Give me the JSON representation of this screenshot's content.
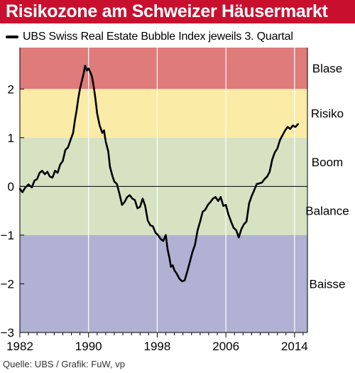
{
  "header": {
    "title": "Risikozone am Schweizer Häusermarkt"
  },
  "legend": {
    "label": "UBS Swiss Real Estate Bubble Index jeweils 3. Quartal"
  },
  "source": "Quelle: UBS / Grafik: FuW, vp",
  "colors": {
    "title_bg": "#c8102e",
    "blase": "#e07b7b",
    "risiko": "#faeba6",
    "boom_balance": "#d6e2c2",
    "baisse": "#b1b1d3",
    "line": "#000000"
  },
  "chart_data": {
    "type": "line",
    "title": "Risikozone am Schweizer Häusermarkt",
    "xlabel": "",
    "ylabel": "",
    "xlim": [
      1982,
      2015.5
    ],
    "ylim": [
      -3,
      2.85
    ],
    "x_ticks": [
      1982,
      1990,
      1998,
      2006,
      2014
    ],
    "y_ticks": [
      -3,
      -2,
      -1,
      0,
      1,
      2
    ],
    "y_tick_labels": [
      "−3",
      "−2",
      "−1",
      "0",
      "1",
      "2"
    ],
    "zones": [
      {
        "label": "Blase",
        "from": 2,
        "to": 2.85
      },
      {
        "label": "Risiko",
        "from": 1,
        "to": 2
      },
      {
        "label": "Boom",
        "from": 0,
        "to": 1
      },
      {
        "label": "Balance",
        "from": -1,
        "to": 0
      },
      {
        "label": "Baisse",
        "from": -3,
        "to": -1
      }
    ],
    "series": [
      {
        "name": "UBS Swiss Real Estate Bubble Index jeweils 3. Quartal",
        "points": [
          [
            1982.0,
            -0.05
          ],
          [
            1982.3,
            -0.12
          ],
          [
            1982.6,
            -0.03
          ],
          [
            1983.0,
            0.04
          ],
          [
            1983.4,
            -0.02
          ],
          [
            1983.7,
            0.12
          ],
          [
            1984.0,
            0.15
          ],
          [
            1984.3,
            0.28
          ],
          [
            1984.6,
            0.32
          ],
          [
            1984.9,
            0.25
          ],
          [
            1985.2,
            0.3
          ],
          [
            1985.5,
            0.2
          ],
          [
            1985.8,
            0.18
          ],
          [
            1986.1,
            0.32
          ],
          [
            1986.4,
            0.28
          ],
          [
            1986.7,
            0.45
          ],
          [
            1987.0,
            0.52
          ],
          [
            1987.3,
            0.75
          ],
          [
            1987.6,
            0.8
          ],
          [
            1987.9,
            0.95
          ],
          [
            1988.2,
            1.1
          ],
          [
            1988.4,
            1.35
          ],
          [
            1988.6,
            1.55
          ],
          [
            1988.8,
            1.8
          ],
          [
            1989.0,
            2.0
          ],
          [
            1989.2,
            2.15
          ],
          [
            1989.4,
            2.3
          ],
          [
            1989.6,
            2.48
          ],
          [
            1989.8,
            2.38
          ],
          [
            1990.0,
            2.42
          ],
          [
            1990.2,
            2.35
          ],
          [
            1990.4,
            2.25
          ],
          [
            1990.6,
            2.05
          ],
          [
            1990.8,
            1.8
          ],
          [
            1991.0,
            1.5
          ],
          [
            1991.3,
            1.25
          ],
          [
            1991.6,
            1.1
          ],
          [
            1991.8,
            1.15
          ],
          [
            1992.0,
            0.92
          ],
          [
            1992.3,
            0.72
          ],
          [
            1992.5,
            0.4
          ],
          [
            1992.8,
            0.2
          ],
          [
            1993.0,
            0.1
          ],
          [
            1993.3,
            0.05
          ],
          [
            1993.6,
            -0.15
          ],
          [
            1993.9,
            -0.38
          ],
          [
            1994.2,
            -0.32
          ],
          [
            1994.5,
            -0.22
          ],
          [
            1994.8,
            -0.18
          ],
          [
            1995.1,
            -0.25
          ],
          [
            1995.4,
            -0.28
          ],
          [
            1995.7,
            -0.45
          ],
          [
            1996.0,
            -0.42
          ],
          [
            1996.3,
            -0.25
          ],
          [
            1996.6,
            -0.4
          ],
          [
            1996.9,
            -0.7
          ],
          [
            1997.2,
            -0.8
          ],
          [
            1997.5,
            -0.82
          ],
          [
            1997.8,
            -0.95
          ],
          [
            1998.1,
            -1.0
          ],
          [
            1998.4,
            -1.08
          ],
          [
            1998.7,
            -1.12
          ],
          [
            1999.0,
            -1.0
          ],
          [
            1999.2,
            -1.28
          ],
          [
            1999.4,
            -1.45
          ],
          [
            1999.6,
            -1.65
          ],
          [
            1999.8,
            -1.62
          ],
          [
            2000.0,
            -1.72
          ],
          [
            2000.3,
            -1.8
          ],
          [
            2000.6,
            -1.9
          ],
          [
            2000.9,
            -1.95
          ],
          [
            2001.2,
            -1.93
          ],
          [
            2001.5,
            -1.75
          ],
          [
            2001.8,
            -1.55
          ],
          [
            2002.1,
            -1.35
          ],
          [
            2002.4,
            -1.2
          ],
          [
            2002.7,
            -0.9
          ],
          [
            2003.0,
            -0.72
          ],
          [
            2003.3,
            -0.52
          ],
          [
            2003.6,
            -0.48
          ],
          [
            2003.9,
            -0.38
          ],
          [
            2004.2,
            -0.32
          ],
          [
            2004.5,
            -0.25
          ],
          [
            2004.8,
            -0.22
          ],
          [
            2005.1,
            -0.3
          ],
          [
            2005.4,
            -0.22
          ],
          [
            2005.7,
            -0.4
          ],
          [
            2006.0,
            -0.38
          ],
          [
            2006.3,
            -0.58
          ],
          [
            2006.6,
            -0.72
          ],
          [
            2006.9,
            -0.85
          ],
          [
            2007.2,
            -0.9
          ],
          [
            2007.5,
            -1.05
          ],
          [
            2007.8,
            -0.88
          ],
          [
            2008.1,
            -0.78
          ],
          [
            2008.4,
            -0.72
          ],
          [
            2008.7,
            -0.35
          ],
          [
            2009.0,
            -0.2
          ],
          [
            2009.3,
            -0.08
          ],
          [
            2009.6,
            0.05
          ],
          [
            2009.9,
            0.06
          ],
          [
            2010.2,
            0.08
          ],
          [
            2010.5,
            0.15
          ],
          [
            2010.8,
            0.2
          ],
          [
            2011.1,
            0.3
          ],
          [
            2011.4,
            0.55
          ],
          [
            2011.7,
            0.7
          ],
          [
            2012.0,
            0.78
          ],
          [
            2012.3,
            0.95
          ],
          [
            2012.6,
            1.05
          ],
          [
            2012.9,
            1.15
          ],
          [
            2013.2,
            1.22
          ],
          [
            2013.5,
            1.18
          ],
          [
            2013.8,
            1.25
          ],
          [
            2014.1,
            1.22
          ],
          [
            2014.4,
            1.28
          ]
        ]
      }
    ]
  }
}
